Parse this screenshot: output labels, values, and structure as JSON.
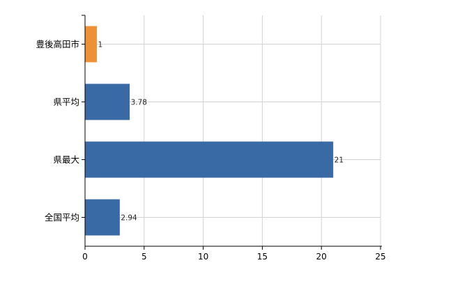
{
  "chart_data": {
    "type": "bar",
    "orientation": "horizontal",
    "categories": [
      "豊後高田市",
      "県平均",
      "県最大",
      "全国平均"
    ],
    "values": [
      1,
      3.78,
      21,
      2.94
    ],
    "value_labels": [
      "1",
      "3.78",
      "21",
      "2.94"
    ],
    "colors": [
      "#ee9035",
      "#3a6aa5",
      "#3a6aa5",
      "#3a6aa5"
    ],
    "xlim": [
      0,
      25
    ],
    "xticks": [
      0,
      5,
      10,
      15,
      20,
      25
    ],
    "xtick_labels": [
      "0",
      "5",
      "10",
      "15",
      "20",
      "25"
    ],
    "grid": true,
    "legend": "none",
    "title": "",
    "xlabel": "",
    "ylabel": ""
  }
}
